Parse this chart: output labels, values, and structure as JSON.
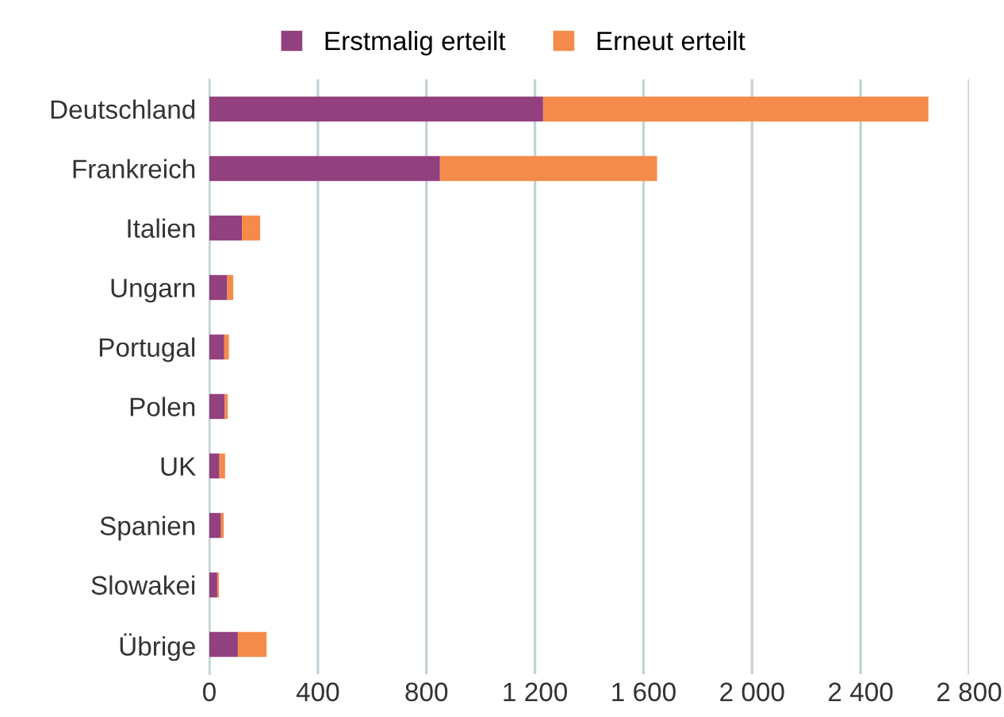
{
  "chart_data": {
    "type": "bar",
    "orientation": "horizontal",
    "stacked": true,
    "categories": [
      "Deutschland",
      "Frankreich",
      "Italien",
      "Ungarn",
      "Portugal",
      "Polen",
      "UK",
      "Spanien",
      "Slowakei",
      "Übrige"
    ],
    "series": [
      {
        "name": "Erstmalig erteilt",
        "color": "#93407f",
        "values": [
          1230,
          850,
          120,
          66,
          55,
          57,
          37,
          43,
          29,
          105
        ]
      },
      {
        "name": "Erneut erteilt",
        "color": "#f58b4a",
        "values": [
          1420,
          800,
          67,
          22,
          17,
          11,
          21,
          10,
          6,
          106
        ]
      }
    ],
    "xlim": [
      0,
      2800
    ],
    "xticks": [
      0,
      400,
      800,
      {
        "value": 1200,
        "label": "1 200"
      },
      {
        "value": 1600,
        "label": "1 600"
      },
      {
        "value": 2000,
        "label": "2 000"
      },
      {
        "value": 2400,
        "label": "2 400"
      },
      {
        "value": 2800,
        "label": "2 800"
      }
    ],
    "grid": "x",
    "legend": "top"
  }
}
